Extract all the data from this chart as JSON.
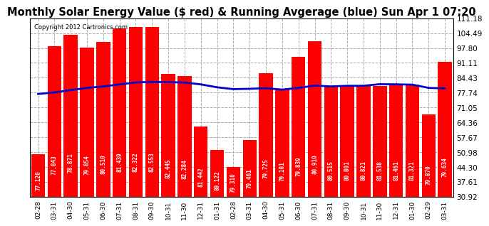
{
  "title": "Monthly Solar Energy Value ($ red) & Running Avgerage (blue) Sun Apr 1 07:20",
  "copyright": "Copyright 2012 Cartronics.com",
  "bar_labels": [
    "02-28",
    "03-31",
    "04-30",
    "05-31",
    "06-30",
    "07-31",
    "08-31",
    "09-30",
    "10-31",
    "11-30",
    "12-31",
    "01-31",
    "02-28",
    "03-31",
    "04-30",
    "05-31",
    "06-30",
    "07-31",
    "08-31",
    "09-30",
    "10-31",
    "11-30",
    "12-31",
    "01-30",
    "02-29",
    "03-31"
  ],
  "bar_values": [
    50.12,
    98.513,
    103.671,
    97.954,
    100.51,
    106.439,
    107.323,
    107.203,
    86.285,
    85.284,
    62.445,
    51.88,
    44.31,
    56.31,
    86.506,
    79.101,
    93.725,
    100.889,
    80.51,
    80.915,
    80.801,
    80.838,
    81.561,
    81.321,
    67.87,
    91.634
  ],
  "running_avg": [
    77.12,
    77.843,
    78.871,
    79.854,
    80.51,
    81.439,
    82.322,
    82.553,
    82.445,
    82.284,
    81.442,
    80.122,
    79.31,
    79.461,
    79.725,
    79.101,
    79.839,
    80.91,
    80.515,
    80.801,
    80.821,
    81.538,
    81.461,
    81.321,
    81.378,
    79.87,
    79.627,
    79.634
  ],
  "running_avg_display": [
    77.12,
    77.843,
    78.871,
    79.854,
    80.51,
    81.439,
    82.322,
    82.553,
    82.445,
    82.284,
    81.442,
    80.122,
    79.31,
    79.461,
    79.725,
    79.101,
    79.839,
    80.91,
    80.515,
    80.801,
    80.821,
    81.538,
    81.461,
    81.321,
    79.87,
    79.634
  ],
  "bar_color": "#ff0000",
  "line_color": "#0000cc",
  "fig_bg": "#ffffff",
  "plot_bg": "#ffffff",
  "ytick_values": [
    30.92,
    37.61,
    44.3,
    50.98,
    57.67,
    64.36,
    71.05,
    77.74,
    84.43,
    91.11,
    97.8,
    104.49,
    111.18
  ],
  "grid_color": "#aaaaaa",
  "title_fontsize": 10.5,
  "bar_text_color": "#ffffff",
  "bar_label_fontsize": 5.5,
  "xticklabel_fontsize": 6.5,
  "yticklabel_fontsize": 7.5
}
